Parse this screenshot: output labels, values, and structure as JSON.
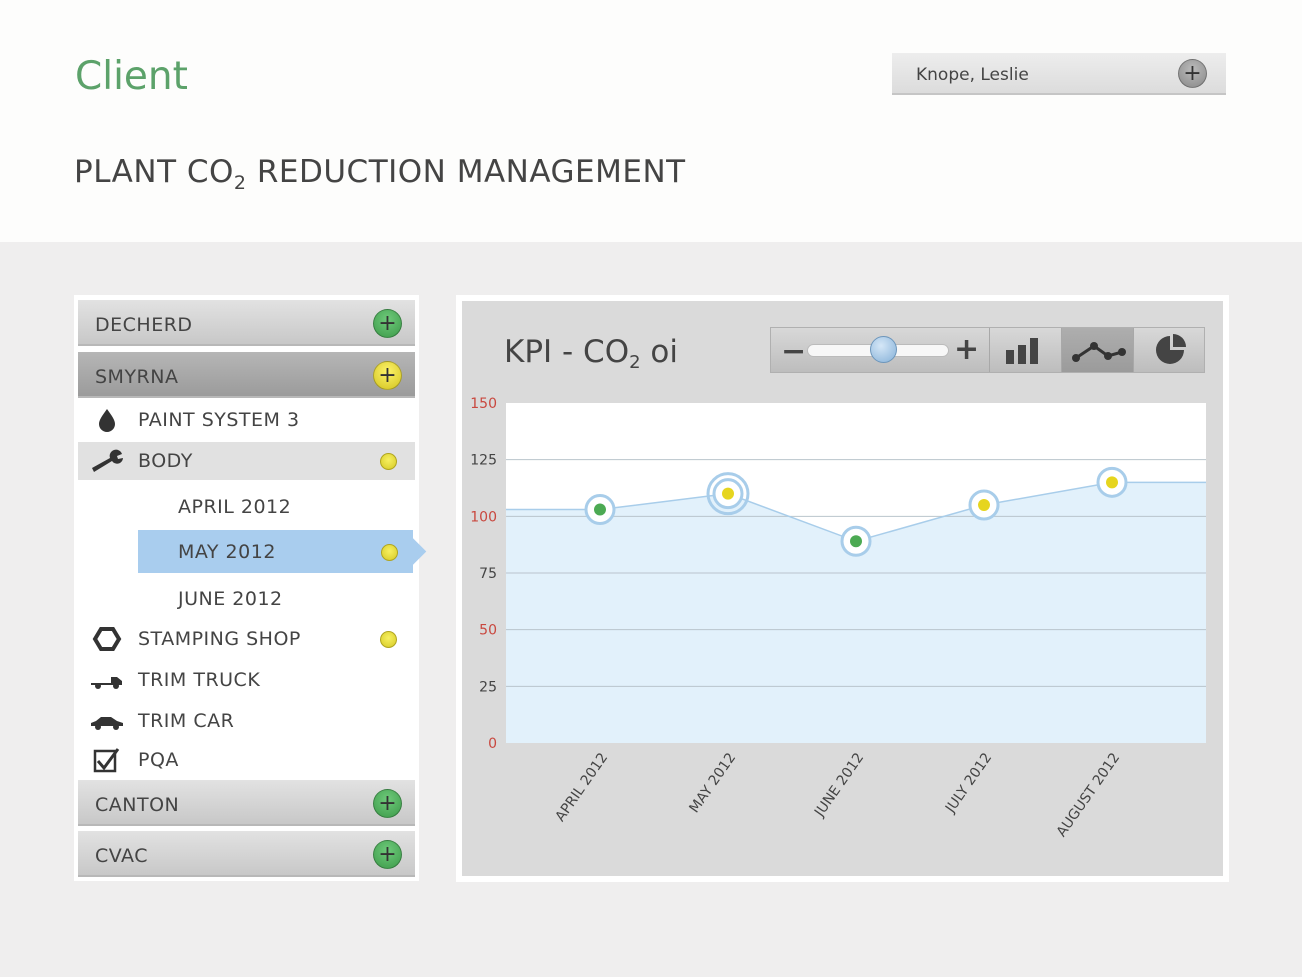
{
  "header": {
    "client_label": "Client",
    "title_main": "PLANT CO",
    "title_sub": "2",
    "title_rest": " REDUCTION MANAGEMENT",
    "user": {
      "name": "Knope, Leslie",
      "add_symbol": "+"
    }
  },
  "sidebar": {
    "sites": [
      {
        "label": "DECHERD",
        "button": "+"
      },
      {
        "label": "SMYRNA",
        "button": "+"
      },
      {
        "label": "CANTON",
        "button": "+"
      },
      {
        "label": "CVAC",
        "button": "+"
      }
    ],
    "departments": [
      {
        "label": "PAINT SYSTEM 3",
        "icon": "drop-icon"
      },
      {
        "label": "BODY",
        "icon": "wrench-icon",
        "status": "yellow"
      },
      {
        "label": "STAMPING SHOP",
        "icon": "hexagon-icon",
        "status": "yellow"
      },
      {
        "label": "TRIM TRUCK",
        "icon": "truck-icon"
      },
      {
        "label": "TRIM CAR",
        "icon": "car-icon"
      },
      {
        "label": "PQA",
        "icon": "checkbox-icon"
      }
    ],
    "months": [
      {
        "label": "APRIL 2012"
      },
      {
        "label": "MAY 2012",
        "selected": true,
        "status": "yellow"
      },
      {
        "label": "JUNE 2012"
      }
    ]
  },
  "toolbar": {
    "minus": "−",
    "plus": "+",
    "zoom_level": 0.55
  },
  "kpi": {
    "title_main": "KPI - CO",
    "title_sub": "2",
    "title_rest": " oi"
  },
  "colors": {
    "green": "#4caa53",
    "yellow": "#e6d51e",
    "line": "#a8cdea",
    "area": "#e2f1fb",
    "tick_red": "#c9483f"
  },
  "chart_data": {
    "type": "area",
    "x": [
      "APRIL 2012",
      "MAY 2012",
      "JUNE 2012",
      "JULY 2012",
      "AUGUST 2012"
    ],
    "values": [
      103,
      110,
      89,
      105,
      115
    ],
    "point_status": [
      "green",
      "yellow",
      "green",
      "yellow",
      "yellow"
    ],
    "selected_index": 1,
    "ylim": [
      0,
      150
    ],
    "yticks": [
      0,
      25,
      50,
      75,
      100,
      125,
      150
    ],
    "ytick_colors": [
      "red",
      "dark",
      "red",
      "dark",
      "red",
      "dark",
      "red"
    ],
    "title": "",
    "xlabel": "",
    "ylabel": "",
    "grid": true
  }
}
